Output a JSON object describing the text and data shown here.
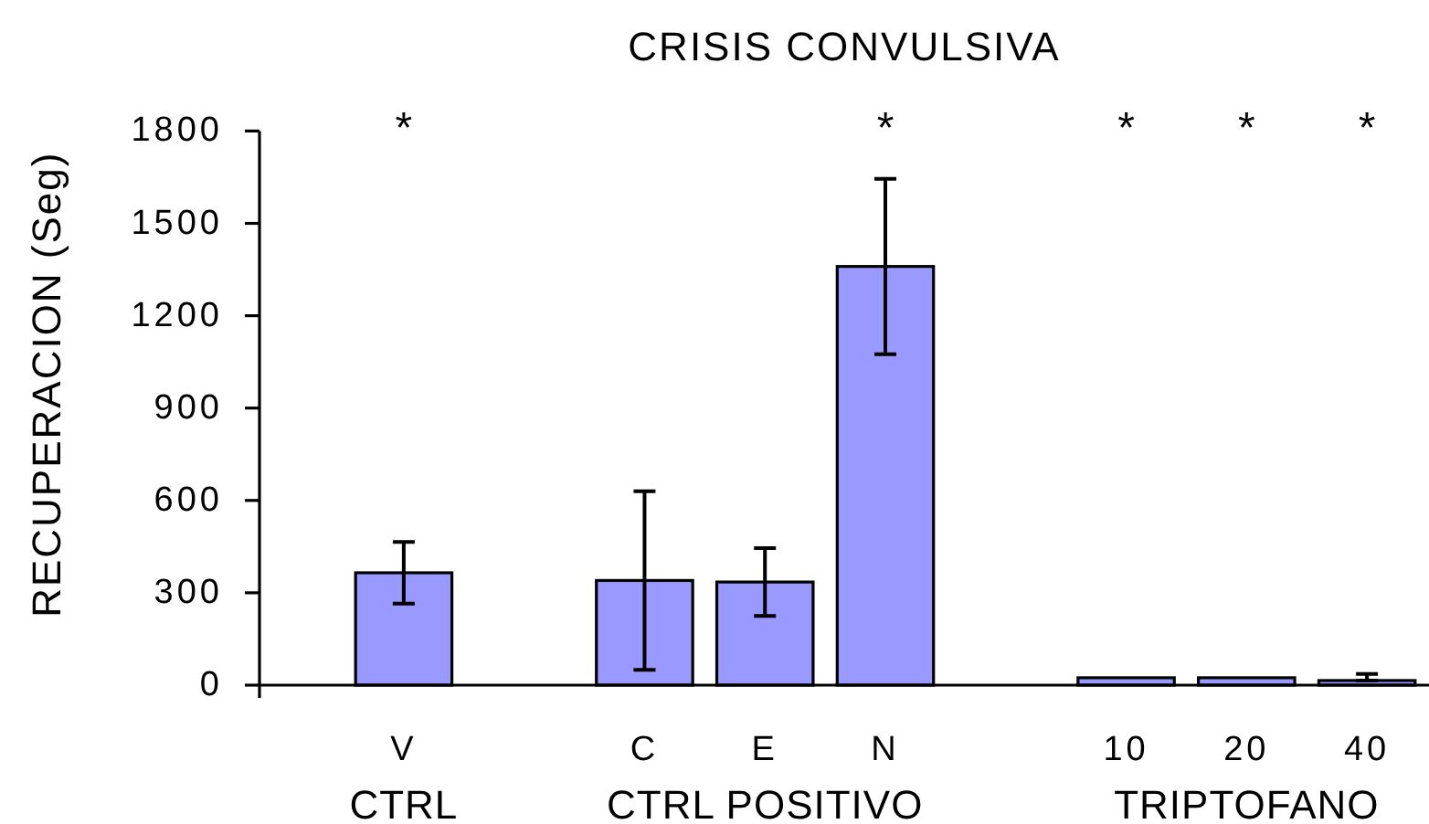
{
  "chart_data": {
    "type": "bar",
    "title": "CRISIS CONVULSIVA",
    "ylabel": "RECUPERACION (Seg)",
    "categories": [
      "V",
      null,
      "C",
      "E",
      "N",
      null,
      "10",
      "20",
      "40"
    ],
    "values": [
      365,
      null,
      340,
      335,
      1360,
      null,
      24,
      24,
      15
    ],
    "errors": [
      100,
      null,
      290,
      110,
      285,
      null,
      null,
      null,
      [
        15,
        36
      ]
    ],
    "color": "#9999ff",
    "ylim": [
      0,
      1800
    ],
    "yticks": [
      0,
      300,
      600,
      900,
      1200,
      1500,
      1800
    ],
    "annotations": [
      "*",
      "*",
      "*",
      "*",
      "*",
      "CTRL",
      "CTRL POSITIVO",
      "TRIPTOFANO"
    ]
  }
}
